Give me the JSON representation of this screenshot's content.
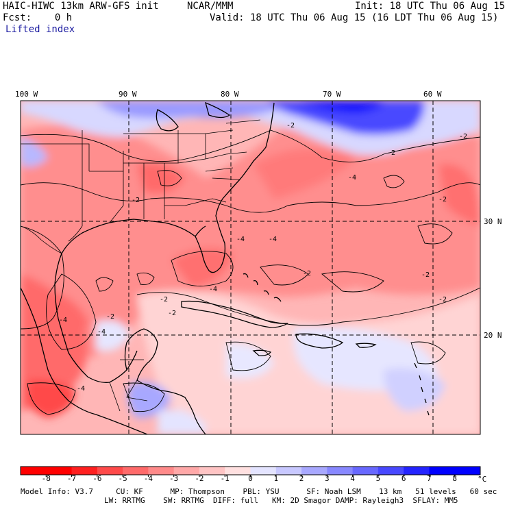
{
  "header": {
    "model_title": "HAIC-HIWC 13km ARW-GFS init",
    "org": "NCAR/MMM",
    "init": "Init: 18 UTC Thu 06 Aug 15",
    "fcst": "Fcst:    0 h",
    "valid": "Valid: 18 UTC Thu 06 Aug 15 (16 LDT Thu 06 Aug 15)",
    "field": "Lifted index"
  },
  "map": {
    "lon_labels": [
      "100 W",
      "90 W",
      "80 W",
      "70 W",
      "60 W"
    ],
    "lat_labels": [
      "30 N",
      "20 N"
    ],
    "contour_labels": [
      "-2",
      "-4"
    ]
  },
  "colorbar": {
    "unit": "°C",
    "tick_labels": [
      "-8",
      "-7",
      "-6",
      "-5",
      "-4",
      "-3",
      "-2",
      "-1",
      "0",
      "1",
      "2",
      "3",
      "4",
      "5",
      "6",
      "7",
      "8"
    ],
    "colors": [
      "#ff0000",
      "#ff2020",
      "#ff4a4a",
      "#ff6a6a",
      "#ff8a8a",
      "#ffa8a8",
      "#ffc4c4",
      "#ffe0e0",
      "#ffffff",
      "#e4e4ff",
      "#c8c8ff",
      "#a8a8ff",
      "#8888ff",
      "#6868ff",
      "#4848ff",
      "#2424ff",
      "#0000ff"
    ]
  },
  "footer": {
    "line1": "Model Info: V3.7     CU: KF      MP: Thompson    PBL: YSU      SF: Noah LSM    13 km   51 levels   60 sec",
    "line2": "LW: RRTMG    SW: RRTMG  DIFF: full   KM: 2D Smagor DAMP: Rayleigh3  SFLAY: MM5"
  }
}
